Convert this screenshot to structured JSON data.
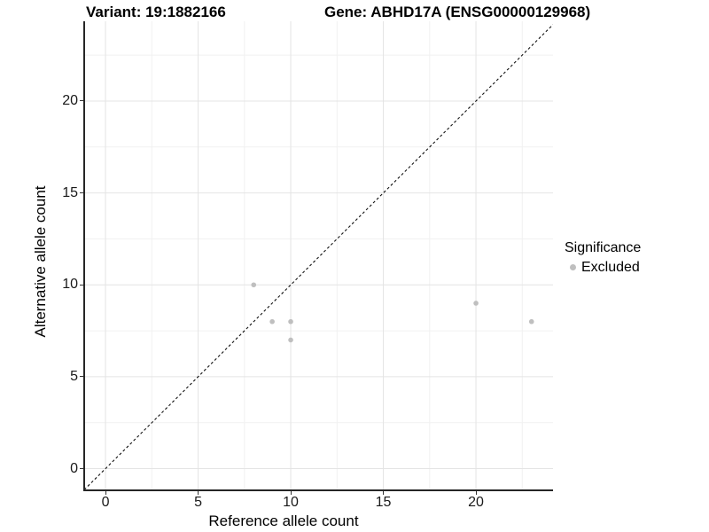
{
  "titles": {
    "variant": "Variant: 19:1882166",
    "gene": "Gene: ABHD17A (ENSG00000129968)"
  },
  "legend": {
    "title": "Significance",
    "items": [
      {
        "label": "Excluded",
        "color": "#bfbfbf"
      }
    ]
  },
  "chart_data": {
    "type": "scatter",
    "title_left": "Variant: 19:1882166",
    "title_right": "Gene: ABHD17A (ENSG00000129968)",
    "xlabel": "Reference allele count",
    "ylabel": "Alternative allele count",
    "axes": {
      "x": {
        "min": -1.15,
        "max": 24.16,
        "major_ticks": [
          0,
          5,
          10,
          15,
          20
        ],
        "minor_ticks": [
          2.5,
          7.5,
          12.5,
          17.5,
          22.5
        ]
      },
      "y": {
        "min": -1.18,
        "max": 24.34,
        "major_ticks": [
          0,
          5,
          10,
          15,
          20
        ],
        "minor_ticks": [
          2.5,
          7.5,
          12.5,
          17.5,
          22.5
        ]
      }
    },
    "grid": {
      "major_color": "#e4e4e4",
      "minor_color": "#f1f1f1"
    },
    "identity_line": {
      "equation": "y = x",
      "style": "dashed",
      "color": "#111111"
    },
    "series": [
      {
        "name": "Excluded",
        "color": "#bfbfbf",
        "point_radius": 2.8,
        "points": [
          {
            "x": 8,
            "y": 10
          },
          {
            "x": 9,
            "y": 8
          },
          {
            "x": 10,
            "y": 8
          },
          {
            "x": 10,
            "y": 7
          },
          {
            "x": 20,
            "y": 9
          },
          {
            "x": 23,
            "y": 8
          }
        ]
      }
    ],
    "legend_position": "right"
  }
}
